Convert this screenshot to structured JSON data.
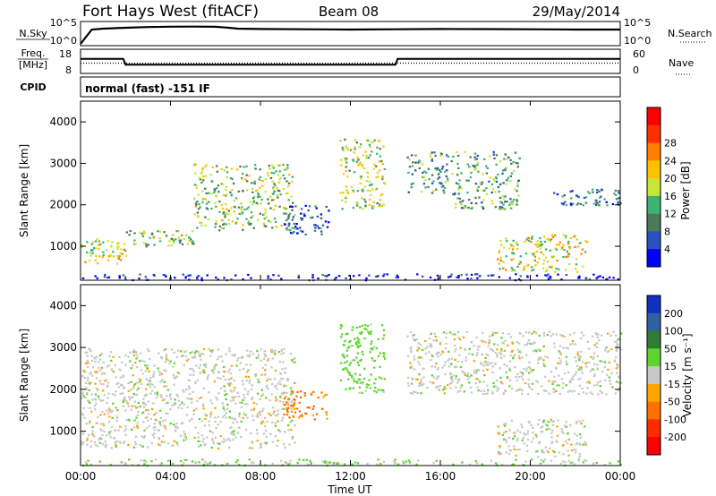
{
  "header": {
    "title": "Fort Hays West (fitACF)",
    "beam": "Beam 08",
    "date": "29/May/2014"
  },
  "sky_panel": {
    "left_label": "N.Sky",
    "left_ticks": [
      "10^5",
      "10^0"
    ],
    "right_label": "N.Search",
    "right_ticks": [
      "10^5",
      "10^0"
    ]
  },
  "freq_panel": {
    "left_label_1": "Freq.",
    "left_label_2": "[MHz]",
    "left_ticks": [
      "18",
      "8"
    ],
    "right_label": "Nave",
    "right_ticks": [
      "60",
      "0"
    ]
  },
  "cpid_panel": {
    "label": "CPID",
    "text": "normal (fast) -151 IF"
  },
  "x_axis": {
    "ticks": [
      "00:00",
      "04:00",
      "08:00",
      "12:00",
      "16:00",
      "20:00",
      "00:00"
    ],
    "label": "Time UT"
  },
  "chart_data": [
    {
      "type": "line",
      "panel": "N.Sky / N.Search",
      "x_hours": [
        0,
        0.5,
        1,
        2,
        3,
        4,
        5,
        6,
        6.5,
        7,
        8,
        10,
        12,
        14,
        16,
        18,
        20,
        22,
        24
      ],
      "series": [
        {
          "name": "N.Sky",
          "values": [
            1,
            3000,
            5000,
            8000,
            12000,
            15000,
            16000,
            14000,
            9000,
            5000,
            4000,
            3500,
            3000,
            3500,
            4000,
            3800,
            3500,
            3000,
            3000
          ]
        }
      ]
    },
    {
      "type": "line",
      "panel": "Freq / Nave",
      "x_hours": [
        0,
        1.9,
        2.0,
        14.0,
        14.1,
        24
      ],
      "series": [
        {
          "name": "Freq.",
          "values": [
            14.5,
            14.5,
            11.5,
            11.5,
            14.5,
            14.5
          ]
        },
        {
          "name": "Nave",
          "values": [
            26,
            26,
            26,
            26,
            26,
            26
          ]
        }
      ]
    },
    {
      "type": "heatmap",
      "panel": "Power",
      "xlabel": "Time UT",
      "ylabel": "Slant Range [km]",
      "xlim": [
        0,
        24
      ],
      "ylim": [
        180,
        4500
      ],
      "yticks": [
        1000,
        2000,
        3000,
        4000
      ],
      "colorbar": {
        "label": "Power [dB]",
        "ticks": [
          4,
          8,
          12,
          16,
          20,
          24,
          28
        ],
        "colors": [
          "#0000ff",
          "#2a52be",
          "#4a7a5a",
          "#3cb371",
          "#c8e632",
          "#ffc000",
          "#ff7f00",
          "#ff3000",
          "#ff0000"
        ]
      },
      "features": [
        {
          "t": [
            0.0,
            2.0
          ],
          "range": [
            600,
            1200
          ],
          "peak_dB": 26
        },
        {
          "t": [
            2.0,
            5.0
          ],
          "range": [
            1000,
            1400
          ],
          "peak_dB": 22
        },
        {
          "t": [
            5.0,
            9.5
          ],
          "range": [
            1400,
            3000
          ],
          "peak_dB": 22
        },
        {
          "t": [
            9.0,
            11.0
          ],
          "range": [
            1300,
            2000
          ],
          "peak_dB": 14
        },
        {
          "t": [
            11.5,
            13.5
          ],
          "range": [
            1900,
            3600
          ],
          "peak_dB": 24
        },
        {
          "t": [
            14.5,
            16.5
          ],
          "range": [
            2300,
            3300
          ],
          "peak_dB": 18
        },
        {
          "t": [
            16.5,
            19.5
          ],
          "range": [
            1900,
            3300
          ],
          "peak_dB": 20
        },
        {
          "t": [
            21.0,
            24.0
          ],
          "range": [
            2000,
            2400
          ],
          "peak_dB": 16
        },
        {
          "t": [
            18.5,
            22.5
          ],
          "range": [
            400,
            1300
          ],
          "peak_dB": 26
        },
        {
          "t": [
            0.0,
            24.0
          ],
          "range": [
            200,
            350
          ],
          "peak_dB": 10
        }
      ]
    },
    {
      "type": "heatmap",
      "panel": "Velocity",
      "xlabel": "Time UT",
      "ylabel": "Slant Range [km]",
      "xlim": [
        0,
        24
      ],
      "ylim": [
        180,
        4500
      ],
      "yticks": [
        1000,
        2000,
        3000,
        4000
      ],
      "colorbar": {
        "label": "Velocity [m s^-1]",
        "ticks": [
          200,
          100,
          50,
          15,
          -15,
          -50,
          -100,
          -200
        ],
        "colors": [
          "#1030c0",
          "#3060a0",
          "#2e7d32",
          "#5cd62e",
          "#c8c8c8",
          "#ffa500",
          "#ff7000",
          "#ff2a00",
          "#ff0000"
        ]
      },
      "features": [
        {
          "t": [
            0.0,
            9.5
          ],
          "range": [
            600,
            3000
          ],
          "velocity": 0
        },
        {
          "t": [
            9.0,
            11.0
          ],
          "range": [
            1300,
            2000
          ],
          "velocity": -60
        },
        {
          "t": [
            11.5,
            13.5
          ],
          "range": [
            1900,
            3600
          ],
          "velocity": 30
        },
        {
          "t": [
            14.5,
            24.0
          ],
          "range": [
            1900,
            3400
          ],
          "velocity": 0
        },
        {
          "t": [
            18.5,
            22.5
          ],
          "range": [
            400,
            1300
          ],
          "velocity": 0
        },
        {
          "t": [
            0.0,
            24.0
          ],
          "range": [
            200,
            350
          ],
          "velocity": 20
        }
      ]
    }
  ]
}
